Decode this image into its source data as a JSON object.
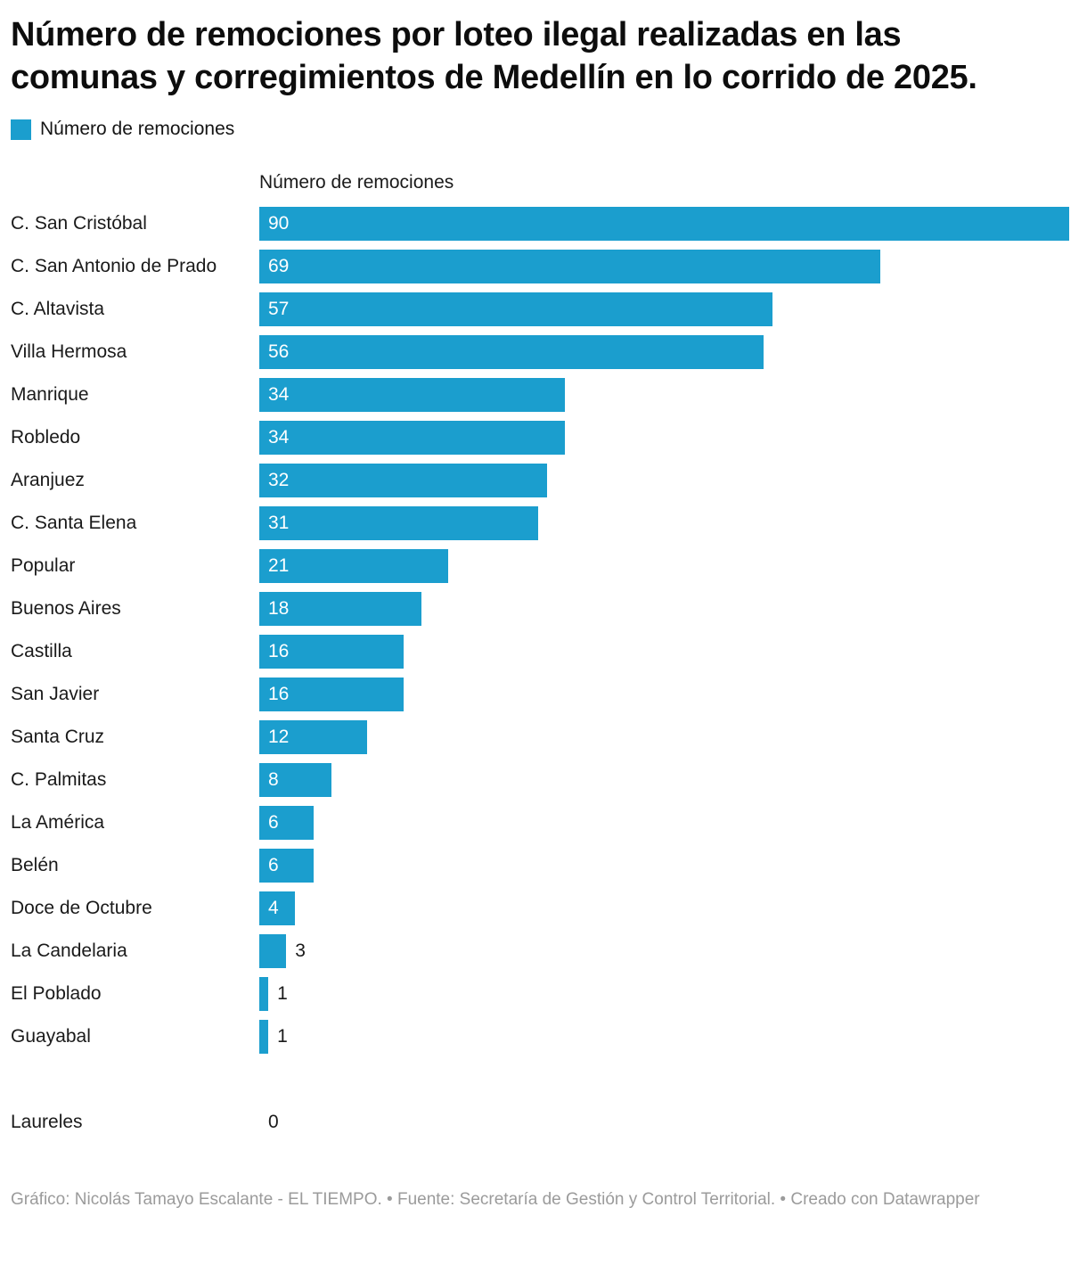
{
  "title": "Número de remociones por loteo ilegal realizadas en las comunas y corregimientos de Medellín en lo corrido de 2025.",
  "legend": {
    "label": "Número de remociones",
    "color": "#1b9ece"
  },
  "chart_data": {
    "type": "bar",
    "orientation": "horizontal",
    "title": "Número de remociones por loteo ilegal realizadas en las comunas y corregimientos de Medellín en lo corrido de 2025.",
    "column_header": "Número de remociones",
    "categories": [
      "C. San Cristóbal",
      "C. San Antonio de Prado",
      "C. Altavista",
      "Villa Hermosa",
      "Manrique",
      "Robledo",
      "Aranjuez",
      "C. Santa Elena",
      "Popular",
      "Buenos Aires",
      "Castilla",
      "San Javier",
      "Santa Cruz",
      "C. Palmitas",
      "La América",
      "Belén",
      "Doce de Octubre",
      "La Candelaria",
      "El Poblado",
      "Guayabal",
      "Laureles"
    ],
    "values": [
      90,
      69,
      57,
      56,
      34,
      34,
      32,
      31,
      21,
      18,
      16,
      16,
      12,
      8,
      6,
      6,
      4,
      3,
      1,
      1,
      0
    ],
    "xlim": [
      0,
      90
    ],
    "bar_color": "#1b9ece",
    "inside_label_min": 4,
    "gap_before_index": 20,
    "grid": false,
    "legend_position": "top-left"
  },
  "footer": {
    "text": "Gráfico: Nicolás Tamayo Escalante - EL TIEMPO. • Fuente: Secretaría de Gestión y Control Territorial. • Creado con Datawrapper"
  }
}
